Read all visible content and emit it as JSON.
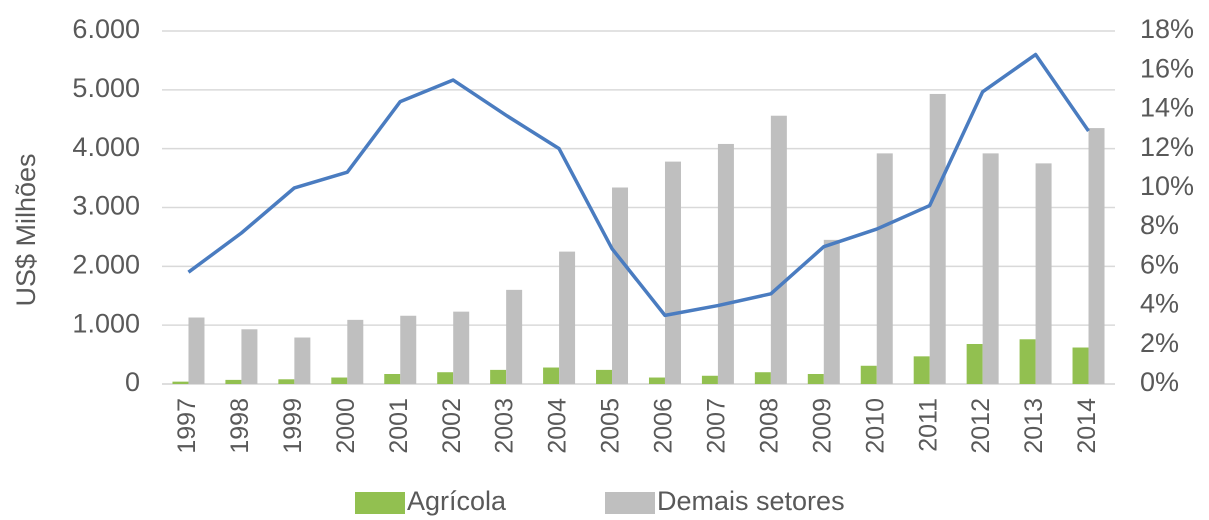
{
  "chart_data": {
    "type": "bar",
    "categories": [
      "1997",
      "1998",
      "1999",
      "2000",
      "2001",
      "2002",
      "2003",
      "2004",
      "2005",
      "2006",
      "2007",
      "2008",
      "2009",
      "2010",
      "2011",
      "2012",
      "2013",
      "2014"
    ],
    "ylabel": "US$ Milhões",
    "ylim": [
      0,
      6000
    ],
    "yticks": [
      0,
      {
        "value": 1000,
        "label": "1.000"
      },
      {
        "value": 2000,
        "label": "2.000"
      },
      {
        "value": 3000,
        "label": "3.000"
      },
      {
        "value": 4000,
        "label": "4.000"
      },
      {
        "value": 5000,
        "label": "5.000"
      },
      {
        "value": 6000,
        "label": "6.000"
      }
    ],
    "y2lim": [
      0,
      18
    ],
    "y2ticks": [
      {
        "value": 0,
        "label": "0%"
      },
      {
        "value": 2,
        "label": "2%"
      },
      {
        "value": 4,
        "label": "4%"
      },
      {
        "value": 6,
        "label": "6%"
      },
      {
        "value": 8,
        "label": "8%"
      },
      {
        "value": 10,
        "label": "10%"
      },
      {
        "value": 12,
        "label": "12%"
      },
      {
        "value": 14,
        "label": "14%"
      },
      {
        "value": 16,
        "label": "16%"
      },
      {
        "value": 18,
        "label": "18%"
      }
    ],
    "grid": true,
    "legend": "bottom",
    "series": [
      {
        "name": "Agrícola",
        "color": "#92c050",
        "values": [
          40,
          70,
          80,
          110,
          170,
          200,
          240,
          280,
          240,
          110,
          140,
          200,
          170,
          310,
          470,
          680,
          760,
          620
        ]
      },
      {
        "name": "Demais setores",
        "color": "#bfbfbf",
        "values": [
          1130,
          930,
          790,
          1090,
          1160,
          1230,
          1600,
          2250,
          3340,
          3780,
          4080,
          4560,
          2450,
          3920,
          4930,
          3920,
          3750,
          4350
        ]
      },
      {
        "type": "line",
        "axis": "y2",
        "color": "#4a7cc0",
        "values": [
          5.7,
          7.7,
          10.0,
          10.8,
          14.4,
          15.5,
          13.7,
          12.0,
          6.9,
          3.5,
          4.0,
          4.6,
          7.0,
          7.9,
          9.1,
          14.9,
          16.8,
          12.9
        ]
      }
    ]
  }
}
